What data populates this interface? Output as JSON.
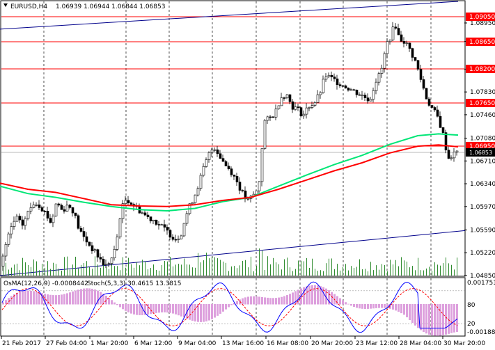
{
  "header": {
    "symbol": "EURUSD,H4",
    "ohlc": "1.06939 1.06944 1.06844 1.06853"
  },
  "indicator_header": {
    "osma": "OsMA(12,26,9) -0.0008442",
    "stoch": "Stoch(5,3,3) 30.4615 13.3815"
  },
  "price_axis": {
    "ticks": [
      "1.08950",
      "1.08650",
      "1.08200",
      "1.07830",
      "1.07460",
      "1.07080",
      "1.06710",
      "1.06340",
      "1.05970",
      "1.05590",
      "1.05220",
      "1.04850"
    ],
    "current_price": "1.06853"
  },
  "levels": [
    {
      "label": "1.09050",
      "value": 1.0905
    },
    {
      "label": "1.08650",
      "value": 1.0865
    },
    {
      "label": "1.08200",
      "value": 1.082
    },
    {
      "label": "1.07650",
      "value": 1.0765
    },
    {
      "label": "1.06950",
      "value": 1.0695
    }
  ],
  "indicator_axis": {
    "top": "0.0017517",
    "l80": "80",
    "l20": "20",
    "bottom": "-0.001889"
  },
  "time_axis": [
    "21 Feb 2017",
    "27 Feb 04:00",
    "1 Mar 20:00",
    "6 Mar 12:00",
    "9 Mar 04:00",
    "13 Mar 16:00",
    "16 Mar 08:00",
    "20 Mar 20:00",
    "23 Mar 12:00",
    "28 Mar 04:00",
    "30 Mar 20:00"
  ],
  "colors": {
    "level_line": "#ff0000",
    "level_label_bg": "#ff0000",
    "ma_fast": "#ff0000",
    "ma_slow": "#00e676",
    "trend_line": "#00008b",
    "volume": "#2e8b2e",
    "osma": "#dda0dd",
    "stoch_main": "#0000ff",
    "stoch_signal": "#ff0000",
    "candle": "#000000",
    "current_price_bg": "#000000"
  },
  "chart_data": {
    "type": "candlestick",
    "symbol": "EURUSD",
    "timeframe": "H4",
    "ylim": [
      1.0485,
      1.093
    ],
    "path_close": [
      [
        0,
        1.05
      ],
      [
        6,
        1.053
      ],
      [
        14,
        1.056
      ],
      [
        22,
        1.058
      ],
      [
        30,
        1.0565
      ],
      [
        40,
        1.059
      ],
      [
        48,
        1.0605
      ],
      [
        55,
        1.06
      ],
      [
        62,
        1.059
      ],
      [
        72,
        1.057
      ],
      [
        80,
        1.0605
      ],
      [
        88,
        1.059
      ],
      [
        96,
        1.06
      ],
      [
        104,
        1.059
      ],
      [
        112,
        1.056
      ],
      [
        120,
        1.0545
      ],
      [
        130,
        1.053
      ],
      [
        140,
        1.0515
      ],
      [
        150,
        1.05
      ],
      [
        158,
        1.051
      ],
      [
        165,
        1.053
      ],
      [
        172,
        1.059
      ],
      [
        180,
        1.061
      ],
      [
        190,
        1.06
      ],
      [
        200,
        1.059
      ],
      [
        210,
        1.058
      ],
      [
        220,
        1.0575
      ],
      [
        230,
        1.0565
      ],
      [
        240,
        1.0555
      ],
      [
        250,
        1.0545
      ],
      [
        258,
        1.055
      ],
      [
        265,
        1.058
      ],
      [
        272,
        1.06
      ],
      [
        280,
        1.062
      ],
      [
        290,
        1.0655
      ],
      [
        298,
        1.068
      ],
      [
        306,
        1.0695
      ],
      [
        314,
        1.068
      ],
      [
        322,
        1.0665
      ],
      [
        330,
        1.0655
      ],
      [
        338,
        1.064
      ],
      [
        346,
        1.062
      ],
      [
        354,
        1.0605
      ],
      [
        362,
        1.0615
      ],
      [
        370,
        1.0625
      ],
      [
        378,
        1.0735
      ],
      [
        386,
        1.074
      ],
      [
        394,
        1.075
      ],
      [
        402,
        1.0775
      ],
      [
        410,
        1.078
      ],
      [
        418,
        1.076
      ],
      [
        426,
        1.0755
      ],
      [
        434,
        1.0745
      ],
      [
        442,
        1.076
      ],
      [
        450,
        1.0765
      ],
      [
        458,
        1.078
      ],
      [
        466,
        1.081
      ],
      [
        474,
        1.0805
      ],
      [
        482,
        1.08
      ],
      [
        490,
        1.0795
      ],
      [
        498,
        1.079
      ],
      [
        506,
        1.0785
      ],
      [
        514,
        1.078
      ],
      [
        522,
        1.0775
      ],
      [
        530,
        1.077
      ],
      [
        538,
        1.08
      ],
      [
        546,
        1.0815
      ],
      [
        554,
        1.086
      ],
      [
        562,
        1.088
      ],
      [
        566,
        1.0895
      ],
      [
        572,
        1.087
      ],
      [
        580,
        1.0865
      ],
      [
        588,
        1.085
      ],
      [
        596,
        1.083
      ],
      [
        604,
        1.08
      ],
      [
        612,
        1.077
      ],
      [
        620,
        1.0755
      ],
      [
        628,
        1.074
      ],
      [
        636,
        1.071
      ],
      [
        642,
        1.0675
      ],
      [
        648,
        1.068
      ],
      [
        654,
        1.0685
      ],
      [
        658,
        1.0686
      ]
    ],
    "ma_red": [
      [
        0,
        1.0635
      ],
      [
        40,
        1.0625
      ],
      [
        80,
        1.062
      ],
      [
        120,
        1.061
      ],
      [
        160,
        1.06
      ],
      [
        200,
        1.0598
      ],
      [
        240,
        1.0597
      ],
      [
        280,
        1.06
      ],
      [
        320,
        1.0607
      ],
      [
        360,
        1.0612
      ],
      [
        400,
        1.0625
      ],
      [
        440,
        1.064
      ],
      [
        480,
        1.0655
      ],
      [
        520,
        1.0668
      ],
      [
        560,
        1.0684
      ],
      [
        600,
        1.0695
      ],
      [
        630,
        1.0697
      ],
      [
        658,
        1.0694
      ]
    ],
    "ma_green": [
      [
        0,
        1.063
      ],
      [
        40,
        1.0618
      ],
      [
        80,
        1.0612
      ],
      [
        120,
        1.0604
      ],
      [
        160,
        1.0597
      ],
      [
        200,
        1.0592
      ],
      [
        240,
        1.059
      ],
      [
        280,
        1.0594
      ],
      [
        320,
        1.0605
      ],
      [
        360,
        1.0612
      ],
      [
        400,
        1.063
      ],
      [
        440,
        1.0648
      ],
      [
        480,
        1.0665
      ],
      [
        520,
        1.068
      ],
      [
        560,
        1.0698
      ],
      [
        600,
        1.0712
      ],
      [
        630,
        1.0715
      ],
      [
        658,
        1.0713
      ]
    ],
    "trend_upper": [
      [
        0,
        1.0885
      ],
      [
        658,
        1.093
      ]
    ],
    "trend_lower": [
      [
        0,
        1.0485
      ],
      [
        668,
        1.0558
      ]
    ],
    "osma_range": [
      -0.001889,
      0.0017517
    ],
    "stoch_levels": [
      20,
      80
    ]
  }
}
